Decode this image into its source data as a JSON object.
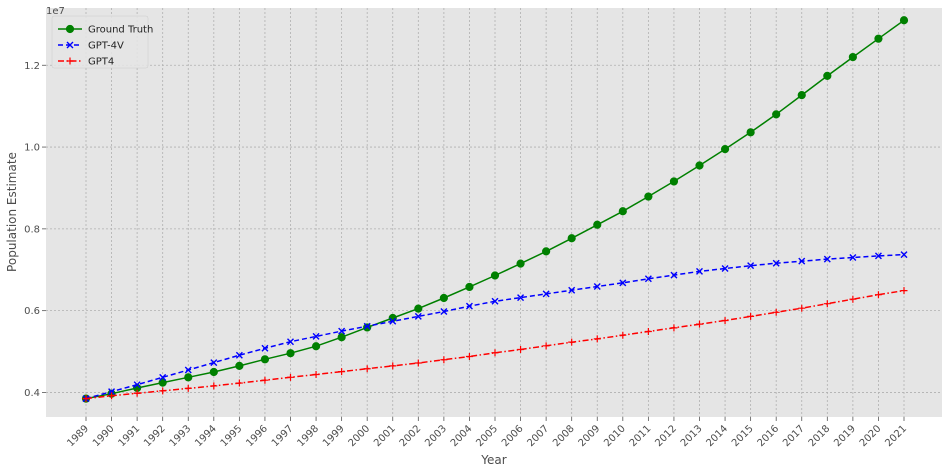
{
  "chart_data": {
    "type": "line",
    "xlabel": "Year",
    "ylabel": "Population Estimate",
    "y_offset_label": "1e7",
    "ylim": [
      0.34,
      1.34
    ],
    "y_ticks": [
      0.4,
      0.6,
      0.8,
      1.0,
      1.2
    ],
    "y_tick_labels": [
      "0.4",
      "0.6",
      "0.8",
      "1.0",
      "1.2"
    ],
    "categories": [
      "1989",
      "1990",
      "1991",
      "1992",
      "1993",
      "1994",
      "1995",
      "1996",
      "1997",
      "1998",
      "1999",
      "2000",
      "2001",
      "2002",
      "2003",
      "2004",
      "2005",
      "2006",
      "2007",
      "2008",
      "2009",
      "2010",
      "2011",
      "2012",
      "2013",
      "2014",
      "2015",
      "2016",
      "2017",
      "2018",
      "2019",
      "2020",
      "2021"
    ],
    "grid": true,
    "legend_position": "top-left",
    "series": [
      {
        "name": "Ground Truth",
        "color": "#008000",
        "style": "solid",
        "marker": "circle",
        "values": [
          0.385,
          0.397,
          0.411,
          0.424,
          0.437,
          0.45,
          0.465,
          0.481,
          0.496,
          0.513,
          0.535,
          0.559,
          0.582,
          0.605,
          0.631,
          0.658,
          0.686,
          0.715,
          0.745,
          0.777,
          0.81,
          0.843,
          0.879,
          0.916,
          0.955,
          0.995,
          1.036,
          1.08,
          1.127,
          1.174,
          1.22,
          1.265,
          1.31
        ]
      },
      {
        "name": "GPT-4V",
        "color": "#0000ff",
        "style": "dashed",
        "marker": "x",
        "values": [
          0.385,
          0.402,
          0.419,
          0.437,
          0.455,
          0.473,
          0.491,
          0.508,
          0.524,
          0.537,
          0.55,
          0.562,
          0.574,
          0.586,
          0.598,
          0.611,
          0.623,
          0.632,
          0.641,
          0.65,
          0.659,
          0.668,
          0.678,
          0.687,
          0.696,
          0.703,
          0.71,
          0.716,
          0.721,
          0.726,
          0.73,
          0.734,
          0.737
        ]
      },
      {
        "name": "GPT4",
        "color": "#ff0000",
        "style": "dashdot",
        "marker": "plus",
        "values": [
          0.385,
          0.392,
          0.398,
          0.404,
          0.41,
          0.416,
          0.423,
          0.43,
          0.437,
          0.444,
          0.451,
          0.458,
          0.465,
          0.472,
          0.48,
          0.488,
          0.497,
          0.505,
          0.514,
          0.523,
          0.531,
          0.54,
          0.549,
          0.558,
          0.567,
          0.576,
          0.586,
          0.596,
          0.606,
          0.617,
          0.628,
          0.639,
          0.649
        ]
      }
    ]
  }
}
